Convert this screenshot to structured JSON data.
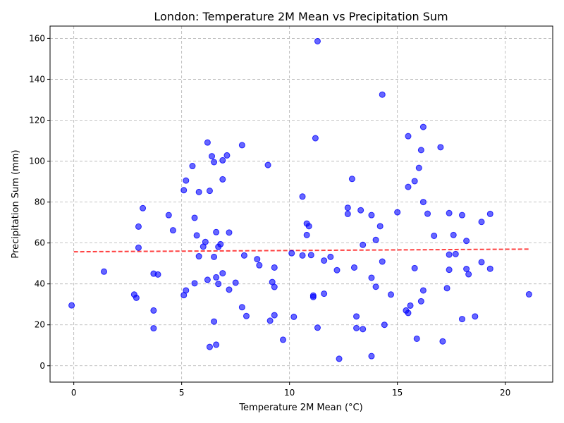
{
  "chart_data": {
    "type": "scatter",
    "title": "London: Temperature 2M Mean vs Precipitation Sum",
    "xlabel": "Temperature 2M Mean (°C)",
    "ylabel": "Precipitation Sum (mm)",
    "xlim": [
      -1.1,
      22.2
    ],
    "ylim": [
      -8,
      166
    ],
    "xticks": [
      0,
      5,
      10,
      15,
      20
    ],
    "yticks": [
      0,
      20,
      40,
      60,
      80,
      100,
      120,
      140,
      160
    ],
    "grid": true,
    "point_color": "#0000ff",
    "trend_color": "#ff0000",
    "trend": {
      "x": [
        0,
        21.1
      ],
      "y": [
        55.7,
        57.0
      ]
    },
    "points": [
      [
        -0.1,
        29.5
      ],
      [
        1.4,
        46.0
      ],
      [
        2.8,
        34.8
      ],
      [
        2.9,
        33.2
      ],
      [
        3.0,
        57.7
      ],
      [
        3.0,
        68.0
      ],
      [
        3.2,
        77.0
      ],
      [
        3.7,
        45.0
      ],
      [
        3.7,
        27.0
      ],
      [
        3.7,
        18.3
      ],
      [
        3.9,
        44.6
      ],
      [
        4.4,
        73.6
      ],
      [
        4.6,
        66.2
      ],
      [
        5.1,
        85.8
      ],
      [
        5.1,
        34.5
      ],
      [
        5.2,
        90.5
      ],
      [
        5.2,
        36.8
      ],
      [
        5.5,
        97.6
      ],
      [
        5.6,
        72.3
      ],
      [
        5.6,
        40.3
      ],
      [
        5.7,
        63.7
      ],
      [
        5.8,
        84.9
      ],
      [
        5.8,
        53.5
      ],
      [
        6.0,
        58.2
      ],
      [
        6.1,
        60.5
      ],
      [
        6.2,
        109.1
      ],
      [
        6.2,
        42.0
      ],
      [
        6.3,
        85.5
      ],
      [
        6.3,
        9.2
      ],
      [
        6.4,
        102.4
      ],
      [
        6.5,
        21.6
      ],
      [
        6.5,
        99.5
      ],
      [
        6.5,
        53.2
      ],
      [
        6.6,
        65.3
      ],
      [
        6.6,
        43.2
      ],
      [
        6.6,
        10.3
      ],
      [
        6.7,
        58.1
      ],
      [
        6.7,
        40.0
      ],
      [
        6.8,
        59.4
      ],
      [
        6.9,
        100.4
      ],
      [
        6.9,
        91.1
      ],
      [
        6.9,
        45.2
      ],
      [
        7.1,
        102.8
      ],
      [
        7.2,
        65.1
      ],
      [
        7.2,
        37.2
      ],
      [
        7.5,
        40.6
      ],
      [
        7.8,
        107.8
      ],
      [
        7.8,
        28.6
      ],
      [
        7.9,
        53.9
      ],
      [
        8.0,
        24.3
      ],
      [
        8.5,
        52.1
      ],
      [
        8.6,
        49.1
      ],
      [
        9.0,
        98.1
      ],
      [
        9.1,
        22.0
      ],
      [
        9.2,
        40.9
      ],
      [
        9.3,
        48.0
      ],
      [
        9.3,
        38.5
      ],
      [
        9.3,
        24.7
      ],
      [
        9.7,
        12.7
      ],
      [
        10.1,
        55.0
      ],
      [
        10.2,
        23.9
      ],
      [
        10.6,
        82.7
      ],
      [
        10.6,
        53.9
      ],
      [
        10.8,
        69.5
      ],
      [
        10.8,
        63.9
      ],
      [
        10.9,
        68.2
      ],
      [
        11.0,
        54.1
      ],
      [
        11.1,
        34.3
      ],
      [
        11.1,
        33.6
      ],
      [
        11.2,
        111.2
      ],
      [
        11.3,
        158.6
      ],
      [
        11.3,
        18.6
      ],
      [
        11.6,
        51.4
      ],
      [
        11.6,
        35.2
      ],
      [
        11.9,
        53.2
      ],
      [
        12.2,
        46.7
      ],
      [
        12.3,
        3.4
      ],
      [
        12.7,
        77.2
      ],
      [
        12.7,
        74.2
      ],
      [
        12.9,
        91.3
      ],
      [
        13.0,
        48.0
      ],
      [
        13.1,
        24.1
      ],
      [
        13.1,
        18.4
      ],
      [
        13.3,
        76.0
      ],
      [
        13.4,
        59.1
      ],
      [
        13.4,
        17.9
      ],
      [
        13.8,
        4.7
      ],
      [
        13.8,
        73.6
      ],
      [
        13.8,
        43.0
      ],
      [
        14.0,
        61.5
      ],
      [
        14.0,
        38.6
      ],
      [
        14.2,
        68.2
      ],
      [
        14.3,
        132.5
      ],
      [
        14.3,
        50.9
      ],
      [
        14.4,
        20.0
      ],
      [
        14.7,
        34.8
      ],
      [
        15.0,
        75.0
      ],
      [
        15.4,
        27.0
      ],
      [
        15.5,
        87.4
      ],
      [
        15.5,
        25.8
      ],
      [
        15.5,
        112.2
      ],
      [
        15.6,
        29.4
      ],
      [
        15.8,
        90.2
      ],
      [
        15.8,
        47.7
      ],
      [
        15.9,
        13.2
      ],
      [
        16.0,
        96.7
      ],
      [
        16.1,
        105.4
      ],
      [
        16.1,
        31.5
      ],
      [
        16.2,
        80.0
      ],
      [
        16.2,
        36.8
      ],
      [
        16.2,
        116.7
      ],
      [
        16.4,
        74.3
      ],
      [
        16.7,
        63.5
      ],
      [
        17.0,
        106.8
      ],
      [
        17.1,
        11.9
      ],
      [
        17.3,
        37.9
      ],
      [
        17.4,
        74.6
      ],
      [
        17.4,
        54.3
      ],
      [
        17.4,
        46.9
      ],
      [
        17.6,
        63.9
      ],
      [
        17.7,
        54.6
      ],
      [
        18.0,
        73.6
      ],
      [
        18.0,
        22.8
      ],
      [
        18.2,
        61.0
      ],
      [
        18.2,
        47.3
      ],
      [
        18.3,
        44.7
      ],
      [
        18.6,
        24.1
      ],
      [
        18.9,
        70.3
      ],
      [
        18.9,
        50.6
      ],
      [
        19.3,
        74.2
      ],
      [
        19.3,
        47.4
      ],
      [
        21.1,
        34.9
      ]
    ]
  }
}
